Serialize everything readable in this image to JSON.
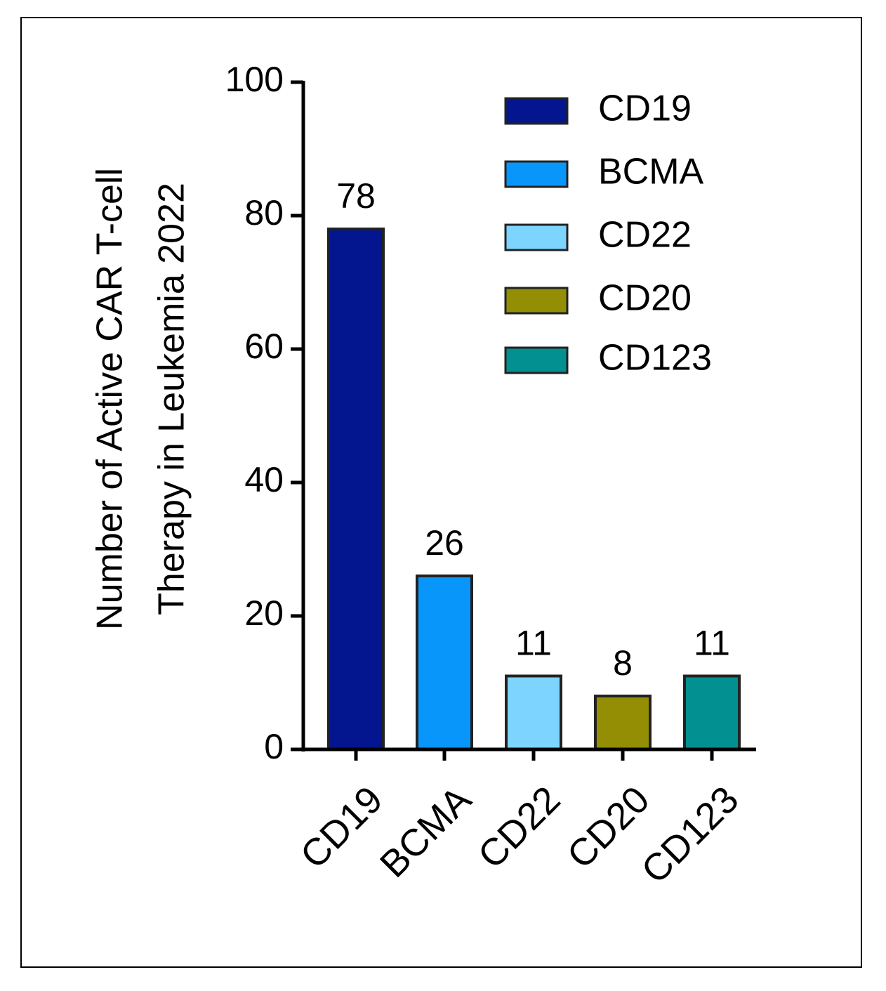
{
  "chart_data": {
    "type": "bar",
    "title": "",
    "xlabel": "",
    "ylabel_lines": [
      "Number of Active CAR T-cell",
      "Therapy in Leukemia 2022"
    ],
    "categories": [
      "CD19",
      "BCMA",
      "CD22",
      "CD20",
      "CD123"
    ],
    "values": [
      78,
      26,
      11,
      8,
      11
    ],
    "data_labels": [
      "78",
      "26",
      "11",
      "8",
      "11"
    ],
    "colors": [
      "#03168f",
      "#0896fa",
      "#7dd4ff",
      "#938e03",
      "#039090"
    ],
    "ylim": [
      0,
      100
    ],
    "yticks": [
      0,
      20,
      40,
      60,
      80,
      100
    ],
    "ytick_labels": [
      "0",
      "20",
      "40",
      "60",
      "80",
      "100"
    ],
    "legend": {
      "position": "top-right",
      "entries": [
        "CD19",
        "BCMA",
        "CD22",
        "CD20",
        "CD123"
      ]
    },
    "grid": false
  }
}
